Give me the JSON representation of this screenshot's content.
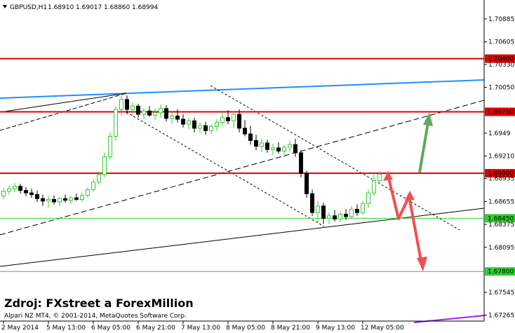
{
  "chart_data": {
    "type": "candlestick",
    "title": "GBPUSD,H1",
    "header_values": [
      "1.68910",
      "1.69017",
      "1.68860",
      "1.68994"
    ],
    "source_note": "Zdroj: FXstreet a ForexMillion",
    "copyright": "Alpari NZ MT4, © 2001-2014, MetaQuotes Software Corp.",
    "up_color": "#32cd32",
    "down_color": "#000000",
    "categories": [
      "2 May 2014",
      null,
      null,
      null,
      null,
      null,
      null,
      null,
      "5 May 13:00",
      null,
      null,
      null,
      null,
      null,
      null,
      null,
      "6 May 05:00",
      null,
      null,
      null,
      null,
      null,
      null,
      null,
      "6 May 21:00",
      null,
      null,
      null,
      null,
      null,
      null,
      null,
      "7 May 13:00",
      null,
      null,
      null,
      null,
      null,
      null,
      null,
      "8 May 05:00",
      null,
      null,
      null,
      null,
      null,
      null,
      null,
      "8 May 21:00",
      null,
      null,
      null,
      null,
      null,
      null,
      null,
      "9 May 13:00",
      null,
      null,
      null,
      null,
      null,
      null,
      null,
      "12 May 05:00",
      null,
      null,
      null
    ],
    "series": [
      {
        "name": "open",
        "values": [
          1.6872,
          1.6878,
          1.6881,
          1.6884,
          1.6879,
          1.6876,
          1.6874,
          1.6869,
          1.6866,
          1.6868,
          1.6865,
          1.6869,
          1.6867,
          1.687,
          1.6868,
          1.6873,
          1.688,
          1.6889,
          1.6898,
          1.692,
          1.6945,
          1.6978,
          1.699,
          1.6978,
          1.6982,
          1.6972,
          1.6976,
          1.6971,
          1.6974,
          1.6979,
          1.6967,
          1.697,
          1.6966,
          1.696,
          1.6964,
          1.6955,
          1.6958,
          1.6952,
          1.6957,
          1.6962,
          1.6968,
          1.6964,
          1.6972,
          1.6955,
          1.6948,
          1.694,
          1.6933,
          1.6937,
          1.6929,
          1.6931,
          1.6927,
          1.6932,
          1.6935,
          1.6925,
          1.69,
          1.6875,
          1.6852,
          1.686,
          1.6845,
          1.6848,
          1.6844,
          1.685,
          1.6847,
          1.6856,
          1.6852,
          1.6863,
          1.6876,
          1.6891
        ]
      },
      {
        "name": "high",
        "values": [
          1.6882,
          1.6885,
          1.6888,
          1.6887,
          1.6883,
          1.6881,
          1.6879,
          1.6874,
          1.6872,
          1.6873,
          1.6871,
          1.6874,
          1.6872,
          1.6875,
          1.6876,
          1.6883,
          1.6892,
          1.6902,
          1.6925,
          1.695,
          1.6982,
          1.6998,
          1.6995,
          1.6986,
          1.6985,
          1.698,
          1.6982,
          1.6979,
          1.6984,
          1.6983,
          1.6975,
          1.6978,
          1.6972,
          1.6968,
          1.6968,
          1.6962,
          1.6963,
          1.696,
          1.6966,
          1.6975,
          1.6977,
          1.6976,
          1.6978,
          1.6965,
          1.6958,
          1.6947,
          1.6942,
          1.6941,
          1.6936,
          1.6938,
          1.6935,
          1.694,
          1.6942,
          1.6928,
          1.6903,
          1.688,
          1.6866,
          1.6864,
          1.6852,
          1.6855,
          1.6853,
          1.6856,
          1.686,
          1.6862,
          1.6866,
          1.688,
          1.6898,
          1.6902
        ]
      },
      {
        "name": "low",
        "values": [
          1.6868,
          1.6874,
          1.6877,
          1.6875,
          1.6872,
          1.687,
          1.6865,
          1.686,
          1.6858,
          1.6862,
          1.686,
          1.6864,
          1.6863,
          1.6866,
          1.6865,
          1.687,
          1.6877,
          1.6886,
          1.6895,
          1.6917,
          1.694,
          1.697,
          1.6972,
          1.697,
          1.6968,
          1.6966,
          1.6969,
          1.6965,
          1.6968,
          1.6963,
          1.696,
          1.6962,
          1.6956,
          1.6954,
          1.695,
          1.6949,
          1.6947,
          1.6948,
          1.6952,
          1.6958,
          1.696,
          1.6955,
          1.695,
          1.6945,
          1.6935,
          1.6928,
          1.6926,
          1.6925,
          1.6922,
          1.6924,
          1.692,
          1.6926,
          1.692,
          1.6895,
          1.687,
          1.6848,
          1.684,
          1.6838,
          1.6838,
          1.6841,
          1.684,
          1.6843,
          1.6845,
          1.6848,
          1.6849,
          1.6858,
          1.6872,
          1.6886
        ]
      },
      {
        "name": "close",
        "values": [
          1.6878,
          1.6881,
          1.6884,
          1.6879,
          1.6876,
          1.6874,
          1.6869,
          1.6866,
          1.6868,
          1.6865,
          1.6869,
          1.6867,
          1.687,
          1.6868,
          1.6873,
          1.688,
          1.6889,
          1.6898,
          1.692,
          1.6945,
          1.6978,
          1.699,
          1.6978,
          1.6982,
          1.6972,
          1.6976,
          1.6971,
          1.6974,
          1.6979,
          1.6967,
          1.697,
          1.6966,
          1.696,
          1.6964,
          1.6955,
          1.6958,
          1.6952,
          1.6957,
          1.6962,
          1.6968,
          1.6964,
          1.6972,
          1.6955,
          1.6948,
          1.694,
          1.6933,
          1.6937,
          1.6929,
          1.6931,
          1.6927,
          1.6932,
          1.6935,
          1.6925,
          1.69,
          1.6875,
          1.6852,
          1.686,
          1.6845,
          1.6848,
          1.6844,
          1.685,
          1.6847,
          1.6856,
          1.6852,
          1.6863,
          1.6876,
          1.6891,
          1.6899
        ]
      }
    ],
    "ylim": [
      1.67194,
      1.71116
    ],
    "yticks": [
      1.70885,
      {
        "value": 1.70605,
        "label": "1.70605"
      },
      {
        "value": 1.7033,
        "label": "1.70330"
      },
      {
        "value": 1.7005,
        "label": "1.70050"
      },
      1.6949,
      {
        "value": 1.6921,
        "label": "1.69210"
      },
      1.68935,
      1.68655,
      1.68375,
      1.68095,
      1.67545,
      1.67265
    ],
    "levels": [
      {
        "value": 1.704,
        "label": "1.70400",
        "color": "#e00000"
      },
      {
        "value": 1.6975,
        "label": "1.69750",
        "color": "#e00000"
      },
      {
        "value": 1.69,
        "label": "1.69000",
        "color": "#e00000"
      },
      {
        "value": 1.6845,
        "label": "1.68450",
        "color": "#32cd32"
      },
      {
        "value": 1.678,
        "label": "1.67800",
        "color": "#32cd32"
      }
    ]
  }
}
